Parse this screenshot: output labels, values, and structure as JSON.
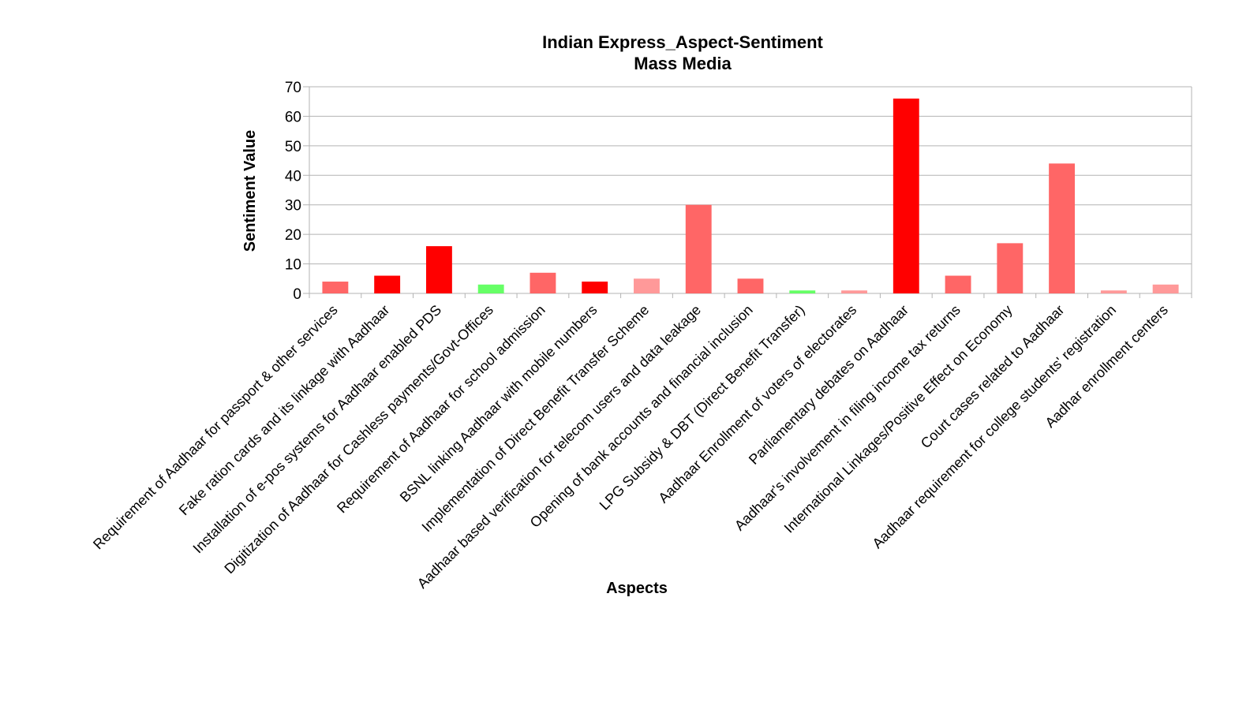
{
  "chart_data": {
    "type": "bar",
    "title": "Indian Express_Aspect-Sentiment",
    "subtitle": "Mass Media",
    "xlabel": "Aspects",
    "ylabel": "Sentiment Value",
    "ylim": [
      0,
      70
    ],
    "yticks": [
      0,
      10,
      20,
      30,
      40,
      50,
      60,
      70
    ],
    "grid": true,
    "legend": "none",
    "categories": [
      "Requirement of Aadhaar for passport & other services",
      "Fake ration cards and its linkage with Aadhaar",
      "Installation of e-pos systems for Aadhaar enabled PDS",
      "Digitization of Aadhaar for Cashless payments/Govt-Offices",
      "Requirement of Aadhaar for school admission",
      "BSNL linking Aadhaar with mobile numbers",
      "Implementation of Direct Benefit Transfer Scheme",
      "Aadhaar based verification for telecom users and data leakage",
      "Opening of bank accounts and financial inclusion",
      "LPG Subsidy & DBT (Direct Benefit Transfer)",
      "Aadhaar Enrollment of voters of electorates",
      "Parliamentary debates on Aadhaar",
      "Aadhaar's involvement in filing income tax returns",
      "International Linkages/Positive Effect on Economy",
      "Court cases related to Aadhaar",
      "Aadhaar requirement for college students' registration",
      "Aadhar enrollment centers"
    ],
    "values": [
      4,
      6,
      16,
      3,
      7,
      4,
      5,
      30,
      5,
      1,
      1,
      66,
      6,
      17,
      44,
      1,
      3
    ],
    "colors": [
      "#ff6666",
      "#ff0000",
      "#ff0000",
      "#66ff66",
      "#ff6666",
      "#ff0000",
      "#ff9999",
      "#ff6666",
      "#ff6666",
      "#66ff66",
      "#ff9999",
      "#ff0000",
      "#ff6666",
      "#ff6666",
      "#ff6666",
      "#ff9999",
      "#ff9999"
    ]
  }
}
